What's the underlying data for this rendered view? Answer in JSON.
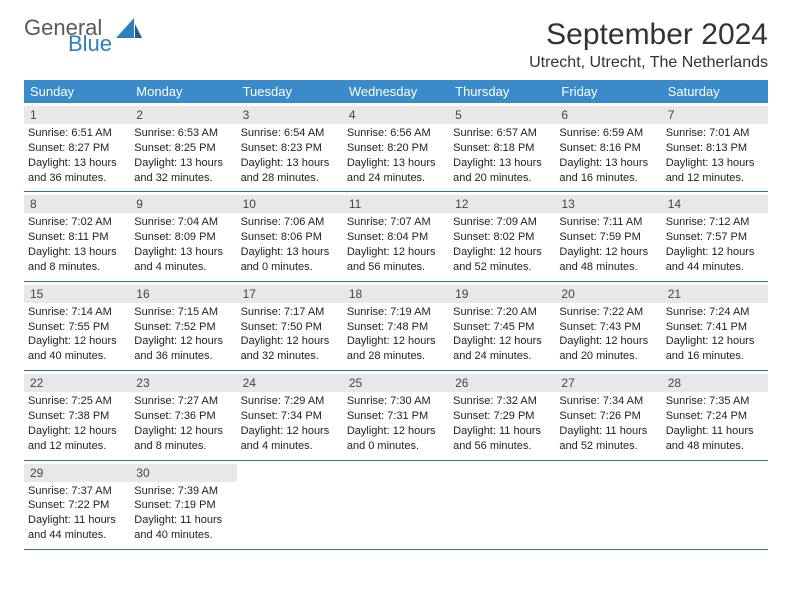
{
  "brand": {
    "line1": "General",
    "line2": "Blue"
  },
  "title": "September 2024",
  "location": "Utrecht, Utrecht, The Netherlands",
  "colors": {
    "header_bg": "#3a8bc9",
    "header_text": "#ffffff",
    "daynum_bg": "#e8e8e8",
    "week_border": "#2d6fa3",
    "brand_accent": "#2f7fbf",
    "brand_gray": "#5a5a5a",
    "body_text": "#222222",
    "page_bg": "#ffffff"
  },
  "typography": {
    "title_fontsize": 30,
    "location_fontsize": 16,
    "dow_fontsize": 13,
    "daynum_fontsize": 12,
    "body_fontsize": 11
  },
  "dow": [
    "Sunday",
    "Monday",
    "Tuesday",
    "Wednesday",
    "Thursday",
    "Friday",
    "Saturday"
  ],
  "days": [
    {
      "n": "1",
      "sr": "6:51 AM",
      "ss": "8:27 PM",
      "dl": "13 hours and 36 minutes."
    },
    {
      "n": "2",
      "sr": "6:53 AM",
      "ss": "8:25 PM",
      "dl": "13 hours and 32 minutes."
    },
    {
      "n": "3",
      "sr": "6:54 AM",
      "ss": "8:23 PM",
      "dl": "13 hours and 28 minutes."
    },
    {
      "n": "4",
      "sr": "6:56 AM",
      "ss": "8:20 PM",
      "dl": "13 hours and 24 minutes."
    },
    {
      "n": "5",
      "sr": "6:57 AM",
      "ss": "8:18 PM",
      "dl": "13 hours and 20 minutes."
    },
    {
      "n": "6",
      "sr": "6:59 AM",
      "ss": "8:16 PM",
      "dl": "13 hours and 16 minutes."
    },
    {
      "n": "7",
      "sr": "7:01 AM",
      "ss": "8:13 PM",
      "dl": "13 hours and 12 minutes."
    },
    {
      "n": "8",
      "sr": "7:02 AM",
      "ss": "8:11 PM",
      "dl": "13 hours and 8 minutes."
    },
    {
      "n": "9",
      "sr": "7:04 AM",
      "ss": "8:09 PM",
      "dl": "13 hours and 4 minutes."
    },
    {
      "n": "10",
      "sr": "7:06 AM",
      "ss": "8:06 PM",
      "dl": "13 hours and 0 minutes."
    },
    {
      "n": "11",
      "sr": "7:07 AM",
      "ss": "8:04 PM",
      "dl": "12 hours and 56 minutes."
    },
    {
      "n": "12",
      "sr": "7:09 AM",
      "ss": "8:02 PM",
      "dl": "12 hours and 52 minutes."
    },
    {
      "n": "13",
      "sr": "7:11 AM",
      "ss": "7:59 PM",
      "dl": "12 hours and 48 minutes."
    },
    {
      "n": "14",
      "sr": "7:12 AM",
      "ss": "7:57 PM",
      "dl": "12 hours and 44 minutes."
    },
    {
      "n": "15",
      "sr": "7:14 AM",
      "ss": "7:55 PM",
      "dl": "12 hours and 40 minutes."
    },
    {
      "n": "16",
      "sr": "7:15 AM",
      "ss": "7:52 PM",
      "dl": "12 hours and 36 minutes."
    },
    {
      "n": "17",
      "sr": "7:17 AM",
      "ss": "7:50 PM",
      "dl": "12 hours and 32 minutes."
    },
    {
      "n": "18",
      "sr": "7:19 AM",
      "ss": "7:48 PM",
      "dl": "12 hours and 28 minutes."
    },
    {
      "n": "19",
      "sr": "7:20 AM",
      "ss": "7:45 PM",
      "dl": "12 hours and 24 minutes."
    },
    {
      "n": "20",
      "sr": "7:22 AM",
      "ss": "7:43 PM",
      "dl": "12 hours and 20 minutes."
    },
    {
      "n": "21",
      "sr": "7:24 AM",
      "ss": "7:41 PM",
      "dl": "12 hours and 16 minutes."
    },
    {
      "n": "22",
      "sr": "7:25 AM",
      "ss": "7:38 PM",
      "dl": "12 hours and 12 minutes."
    },
    {
      "n": "23",
      "sr": "7:27 AM",
      "ss": "7:36 PM",
      "dl": "12 hours and 8 minutes."
    },
    {
      "n": "24",
      "sr": "7:29 AM",
      "ss": "7:34 PM",
      "dl": "12 hours and 4 minutes."
    },
    {
      "n": "25",
      "sr": "7:30 AM",
      "ss": "7:31 PM",
      "dl": "12 hours and 0 minutes."
    },
    {
      "n": "26",
      "sr": "7:32 AM",
      "ss": "7:29 PM",
      "dl": "11 hours and 56 minutes."
    },
    {
      "n": "27",
      "sr": "7:34 AM",
      "ss": "7:26 PM",
      "dl": "11 hours and 52 minutes."
    },
    {
      "n": "28",
      "sr": "7:35 AM",
      "ss": "7:24 PM",
      "dl": "11 hours and 48 minutes."
    },
    {
      "n": "29",
      "sr": "7:37 AM",
      "ss": "7:22 PM",
      "dl": "11 hours and 44 minutes."
    },
    {
      "n": "30",
      "sr": "7:39 AM",
      "ss": "7:19 PM",
      "dl": "11 hours and 40 minutes."
    }
  ],
  "labels": {
    "sunrise": "Sunrise:",
    "sunset": "Sunset:",
    "daylight": "Daylight:"
  },
  "layout": {
    "columns": 7,
    "start_dow": 0,
    "trailing_empty": 5
  }
}
